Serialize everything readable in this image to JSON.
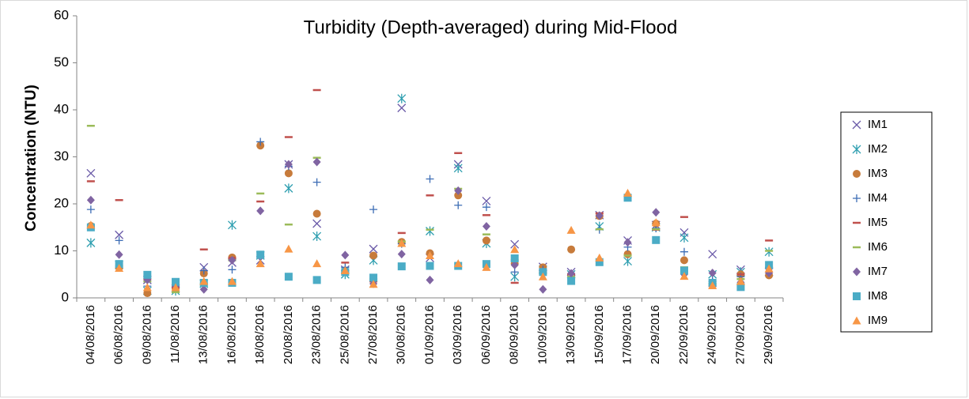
{
  "chart_data": {
    "type": "scatter",
    "title": "Turbidity (Depth-averaged) during Mid-Flood",
    "y_label": "Concentration (NTU)",
    "categories": [
      "04/08/2016",
      "06/08/2016",
      "09/08/2016",
      "11/08/2016",
      "13/08/2016",
      "16/08/2016",
      "18/08/2016",
      "20/08/2016",
      "23/08/2016",
      "25/08/2016",
      "27/08/2016",
      "30/08/2016",
      "01/09/2016",
      "03/09/2016",
      "06/09/2016",
      "08/09/2016",
      "10/09/2016",
      "13/09/2016",
      "15/09/2016",
      "17/09/2016",
      "20/09/2016",
      "22/09/2016",
      "24/09/2016",
      "27/09/2016",
      "29/09/2016"
    ],
    "ylim": [
      0,
      60
    ],
    "yticks": [
      0,
      10,
      20,
      30,
      40,
      50,
      60
    ],
    "grid": false,
    "legend": "right",
    "series": [
      {
        "name": "IM1",
        "color": "#6a5aa8",
        "marker": "x",
        "values": [
          26.5,
          13.4,
          3.8,
          2,
          6.5,
          7.5,
          8,
          28.4,
          15.8,
          6,
          10.4,
          40.4,
          8.5,
          28.4,
          20.6,
          11.4,
          6.6,
          5.5,
          17.6,
          12.2,
          15.5,
          13.9,
          9.3,
          6,
          5.5
        ]
      },
      {
        "name": "IM2",
        "color": "#2f9fb0",
        "marker": "asterisk",
        "values": [
          11.7,
          7,
          1.5,
          1.5,
          3,
          15.5,
          9,
          23.3,
          13.1,
          5,
          8,
          42.4,
          14.2,
          27.6,
          11.6,
          4.5,
          6,
          5,
          15.2,
          7.8,
          15,
          12.8,
          5,
          5.5,
          9.8
        ]
      },
      {
        "name": "IM3",
        "color": "#c77b3b",
        "marker": "circle",
        "values": [
          15.3,
          6.5,
          1,
          2,
          5.2,
          8.6,
          32.4,
          26.5,
          17.9,
          5.8,
          9,
          11.9,
          9.5,
          21.8,
          12.2,
          7.3,
          6.5,
          10.3,
          17.4,
          9.3,
          15.8,
          8,
          3,
          5,
          4.8
        ]
      },
      {
        "name": "IM4",
        "color": "#3d6db5",
        "marker": "plus",
        "values": [
          18.8,
          12.2,
          2.5,
          2.5,
          5.8,
          6,
          33.2,
          28,
          24.6,
          6.5,
          18.8,
          11.5,
          25.3,
          19.7,
          19.3,
          5.5,
          6,
          5,
          14.5,
          10.8,
          14.8,
          9.8,
          3.5,
          4.5,
          6.5
        ]
      },
      {
        "name": "IM5",
        "color": "#c0504d",
        "marker": "dash",
        "values": [
          24.8,
          20.8,
          4,
          2.2,
          10.3,
          8.5,
          20.5,
          34.2,
          44.2,
          7.5,
          3.5,
          13.8,
          21.8,
          30.8,
          17.6,
          3.2,
          5.5,
          5,
          18,
          21.6,
          14.5,
          17.2,
          2.5,
          5,
          12.2
        ]
      },
      {
        "name": "IM6",
        "color": "#9bbb59",
        "marker": "dash",
        "values": [
          36.6,
          6.8,
          3.5,
          1.2,
          3,
          8,
          22.2,
          15.6,
          29.8,
          5.5,
          4,
          12,
          14.5,
          23.2,
          13.5,
          8,
          5.2,
          4.5,
          14.6,
          9,
          14.6,
          6.5,
          3,
          4,
          10
        ]
      },
      {
        "name": "IM7",
        "color": "#8064a2",
        "marker": "diamond",
        "values": [
          20.8,
          9.2,
          3.8,
          2.5,
          1.8,
          8,
          18.5,
          28.4,
          28.9,
          9.1,
          3,
          9.3,
          3.8,
          22.8,
          15.2,
          7,
          1.8,
          5.2,
          17.5,
          11.8,
          18.2,
          5,
          5.3,
          3.3,
          5.3
        ]
      },
      {
        "name": "IM8",
        "color": "#4bacc6",
        "marker": "square",
        "values": [
          15,
          7.2,
          4.9,
          3.4,
          3.2,
          3.2,
          9.2,
          4.5,
          3.8,
          5.5,
          4.3,
          6.7,
          6.8,
          6.8,
          7.2,
          8.4,
          5.5,
          3.6,
          7.6,
          21.3,
          12.3,
          5.8,
          3.2,
          2.3,
          7
        ]
      },
      {
        "name": "IM9",
        "color": "#f79646",
        "marker": "triangle",
        "values": [
          15.5,
          6.3,
          2.2,
          2.2,
          3.5,
          3.5,
          7.3,
          10.4,
          7.3,
          5.8,
          2.9,
          11.6,
          9,
          7.3,
          6.5,
          10.3,
          4.5,
          14.4,
          8.5,
          22.3,
          16,
          4.6,
          2.6,
          3.5,
          6.2
        ]
      }
    ]
  }
}
